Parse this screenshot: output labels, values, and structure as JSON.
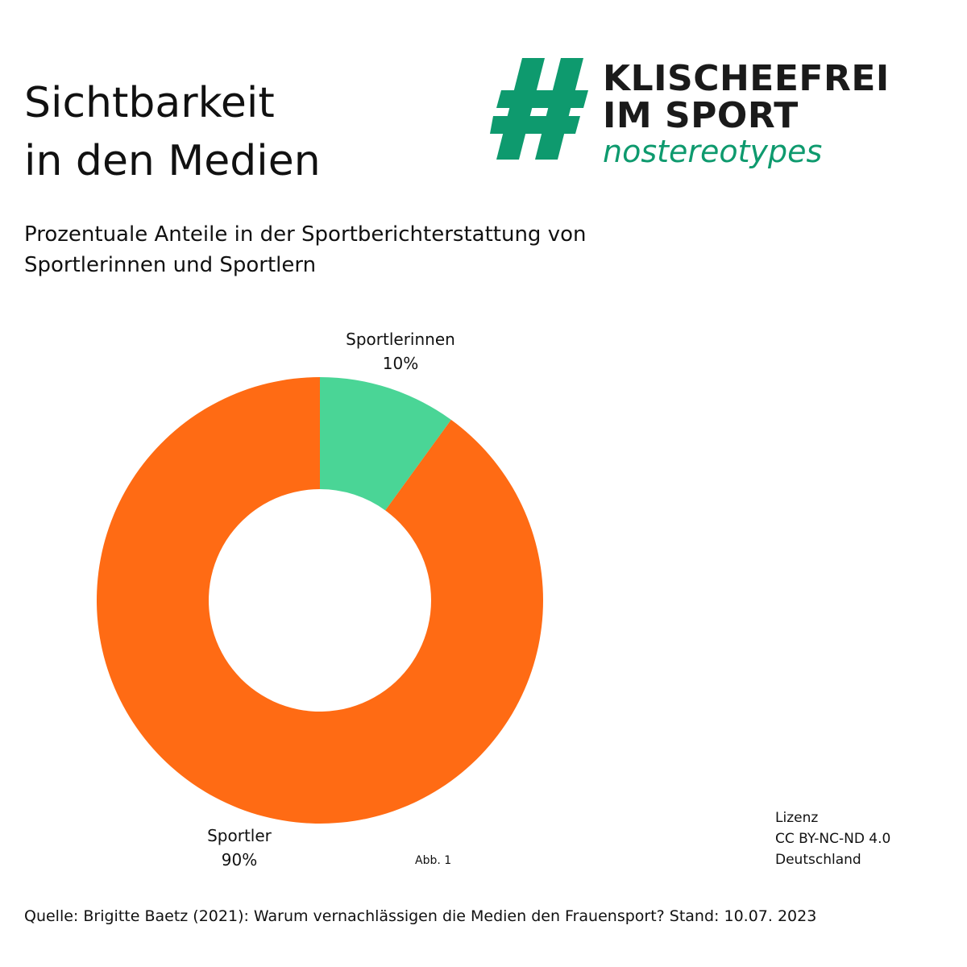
{
  "title": {
    "line1": "Sichtbarkeit",
    "line2": "in den Medien"
  },
  "subtitle": {
    "line1": "Prozentuale Anteile in der Sportberichterstattung von",
    "line2": "Sportlerinnen und Sportlern"
  },
  "logo": {
    "line1": "KLISCHEEFREI",
    "line2": "IM SPORT",
    "line3": "nostereotypes",
    "icon": "hashtag-icon",
    "color": "#0e9a6e"
  },
  "chart_data": {
    "type": "pie",
    "donut": true,
    "categories": [
      "Sportlerinnen",
      "Sportler"
    ],
    "values": [
      10,
      90
    ],
    "value_labels": [
      "10%",
      "90%"
    ],
    "colors": [
      "#4ad596",
      "#ff6b14"
    ],
    "legend": "none"
  },
  "figure_label": "Abb. 1",
  "license": {
    "line1": "Lizenz",
    "line2": "CC BY-NC-ND 4.0",
    "line3": "Deutschland"
  },
  "source": "Quelle: Brigitte Baetz (2021): Warum vernachlässigen die Medien den Frauensport? Stand: 10.07. 2023"
}
